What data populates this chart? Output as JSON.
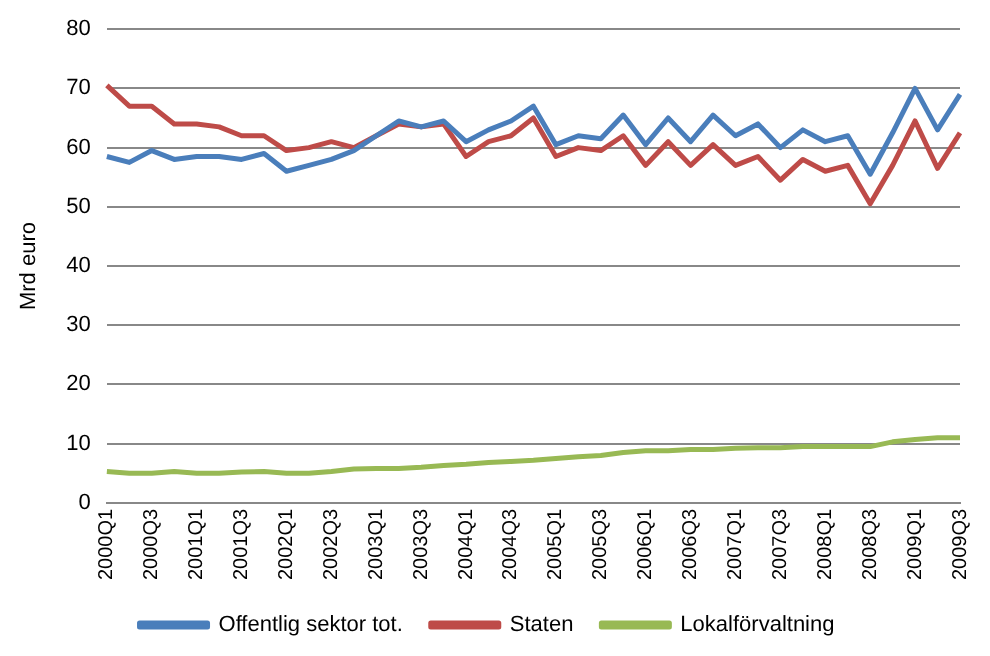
{
  "chart_data": {
    "type": "line",
    "ylabel": "Mrd euro",
    "categories": [
      "2000Q1",
      null,
      "2000Q3",
      null,
      "2001Q1",
      null,
      "2001Q3",
      null,
      "2002Q1",
      null,
      "2002Q3",
      null,
      "2003Q1",
      null,
      "2003Q3",
      null,
      "2004Q1",
      null,
      "2004Q3",
      null,
      "2005Q1",
      null,
      "2005Q3",
      null,
      "2006Q1",
      null,
      "2006Q3",
      null,
      "2007Q1",
      null,
      "2007Q3",
      null,
      "2008Q1",
      null,
      "2008Q3",
      null,
      "2009Q1",
      null,
      "2009Q3"
    ],
    "series": [
      {
        "name": "Offentlig sektor tot.",
        "color": "#4a7ebb",
        "values": [
          58.5,
          57.5,
          59.5,
          58,
          58.5,
          58.5,
          58,
          59,
          56,
          57,
          58,
          59.5,
          62,
          64.5,
          63.5,
          64.5,
          61,
          63,
          64.5,
          67,
          60.5,
          62,
          61.5,
          65.5,
          60.5,
          65,
          61,
          65.5,
          62,
          64,
          60,
          63,
          61,
          62,
          55.5,
          62.5,
          70,
          63,
          69
        ]
      },
      {
        "name": "Staten",
        "color": "#be4b48",
        "values": [
          70.5,
          67,
          67,
          64,
          64,
          63.5,
          62,
          62,
          59.5,
          60,
          61,
          60,
          62,
          64,
          63.5,
          64,
          58.5,
          61,
          62,
          65,
          58.5,
          60,
          59.5,
          62,
          57,
          61,
          57,
          60.5,
          57,
          58.5,
          54.5,
          58,
          56,
          57,
          50.5,
          57,
          64.5,
          56.5,
          62.5
        ]
      },
      {
        "name": "Lokalförvaltning",
        "color": "#98b954",
        "values": [
          5.3,
          5,
          5,
          5.3,
          5,
          5,
          5.2,
          5.3,
          5,
          5,
          5.3,
          5.7,
          5.8,
          5.8,
          6,
          6.3,
          6.5,
          6.8,
          7,
          7.2,
          7.5,
          7.8,
          8,
          8.5,
          8.8,
          8.8,
          9,
          9,
          9.2,
          9.3,
          9.3,
          9.5,
          9.5,
          9.5,
          9.5,
          10.3,
          10.7,
          11,
          11
        ]
      }
    ],
    "ylim": [
      0,
      80
    ],
    "yticks": [
      0,
      10,
      20,
      30,
      40,
      50,
      60,
      70,
      80
    ],
    "grid": "y",
    "legend": "bottom",
    "marker": "none",
    "line_style": "solid"
  }
}
